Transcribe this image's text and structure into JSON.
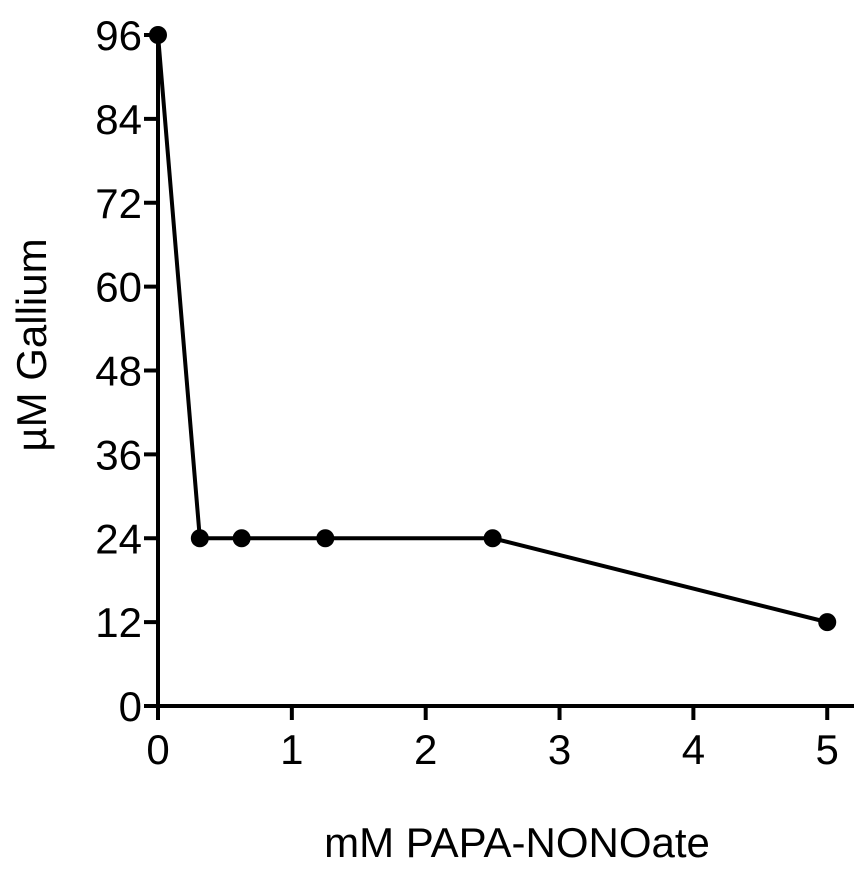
{
  "chart_data": {
    "type": "line",
    "title": "",
    "xlabel": "mM PAPA-NONOate",
    "ylabel": "µM Gallium",
    "xlim": [
      0,
      5.2
    ],
    "ylim": [
      0,
      96
    ],
    "xticks": [
      0,
      1,
      2,
      3,
      4,
      5
    ],
    "yticks": [
      0,
      12,
      24,
      36,
      48,
      60,
      72,
      84,
      96
    ],
    "xtick_labels": [
      "0",
      "1",
      "2",
      "3",
      "4",
      "5"
    ],
    "ytick_labels": [
      "0",
      "12",
      "24",
      "36",
      "48",
      "60",
      "72",
      "84",
      "96"
    ],
    "grid": false,
    "series": [
      {
        "x": [
          0,
          0.3125,
          0.625,
          1.25,
          2.5,
          5
        ],
        "y": [
          96,
          24,
          24,
          24,
          24,
          12
        ],
        "color": "#000000",
        "marker": "circle"
      }
    ]
  }
}
